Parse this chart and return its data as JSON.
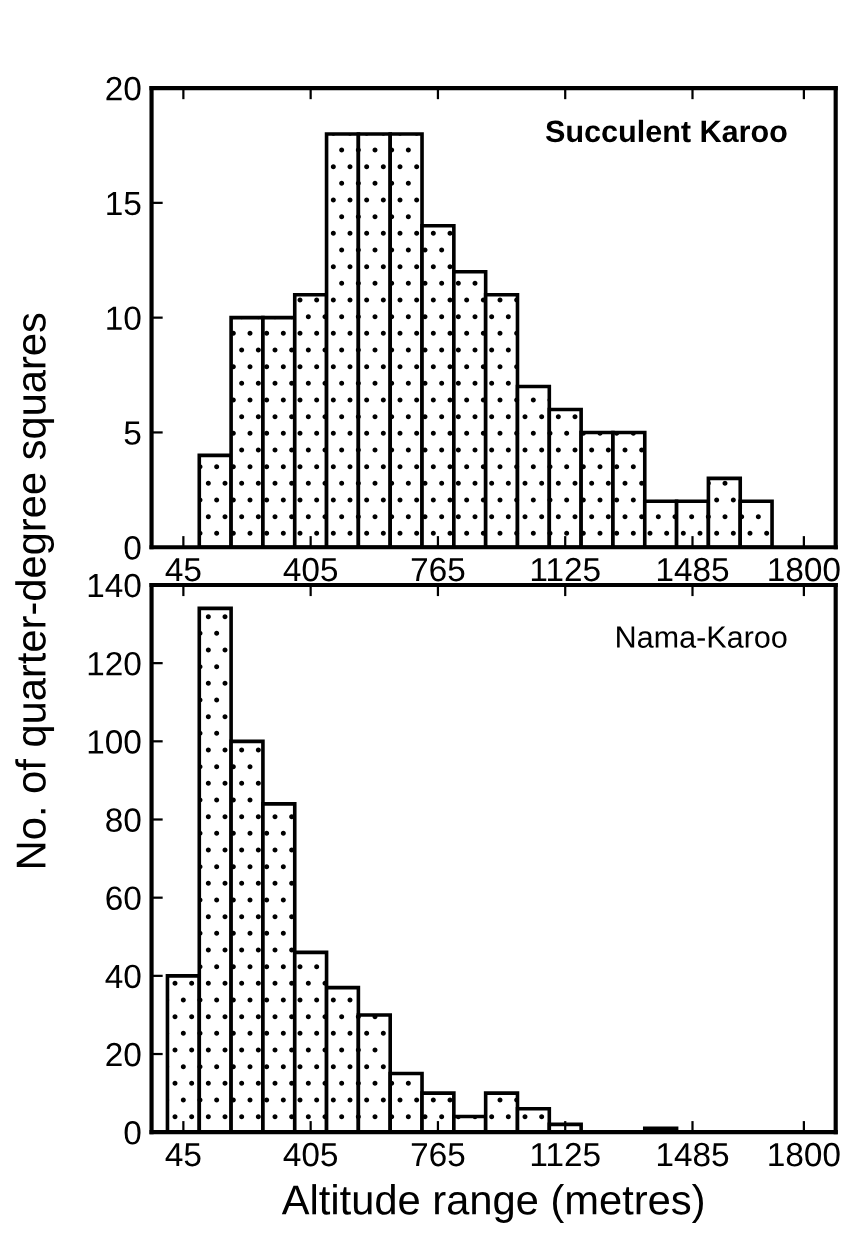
{
  "chart_data": [
    {
      "type": "histogram",
      "ylabel": "No. of quarter-degree squares",
      "annotations": [
        "Succulent Karoo"
      ],
      "bins": [
        90,
        180,
        270,
        360,
        450,
        540,
        630,
        720,
        810,
        900,
        990,
        1080,
        1170,
        1260,
        1350,
        1440,
        1530,
        1620,
        1710
      ],
      "values": [
        4,
        10,
        10,
        11,
        18,
        18,
        18,
        14,
        12,
        11,
        7,
        6,
        5,
        5,
        2,
        2,
        3,
        2
      ],
      "color": "#000000",
      "xlim": [
        -45,
        1890
      ],
      "ylim": [
        0,
        20
      ],
      "xticks": [
        45,
        405,
        765,
        1125,
        1485,
        1800
      ],
      "yticks": [
        0,
        5,
        10,
        15,
        20
      ],
      "grid": false
    },
    {
      "type": "histogram",
      "xlabel": "Altitude range (metres)",
      "annotations": [
        "Nama-Karoo"
      ],
      "bins": [
        0,
        90,
        180,
        270,
        360,
        450,
        540,
        630,
        720,
        810,
        900,
        990,
        1080,
        1170,
        1260,
        1350,
        1440
      ],
      "values": [
        40,
        134,
        100,
        84,
        46,
        37,
        30,
        15,
        10,
        4,
        10,
        6,
        2,
        null,
        null,
        1
      ],
      "color": "#000000",
      "xlim": [
        -45,
        1890
      ],
      "ylim": [
        0,
        140
      ],
      "xticks": [
        45,
        405,
        765,
        1125,
        1485,
        1800
      ],
      "yticks": [
        0,
        20,
        40,
        60,
        80,
        100,
        120,
        140
      ],
      "grid": false
    }
  ]
}
